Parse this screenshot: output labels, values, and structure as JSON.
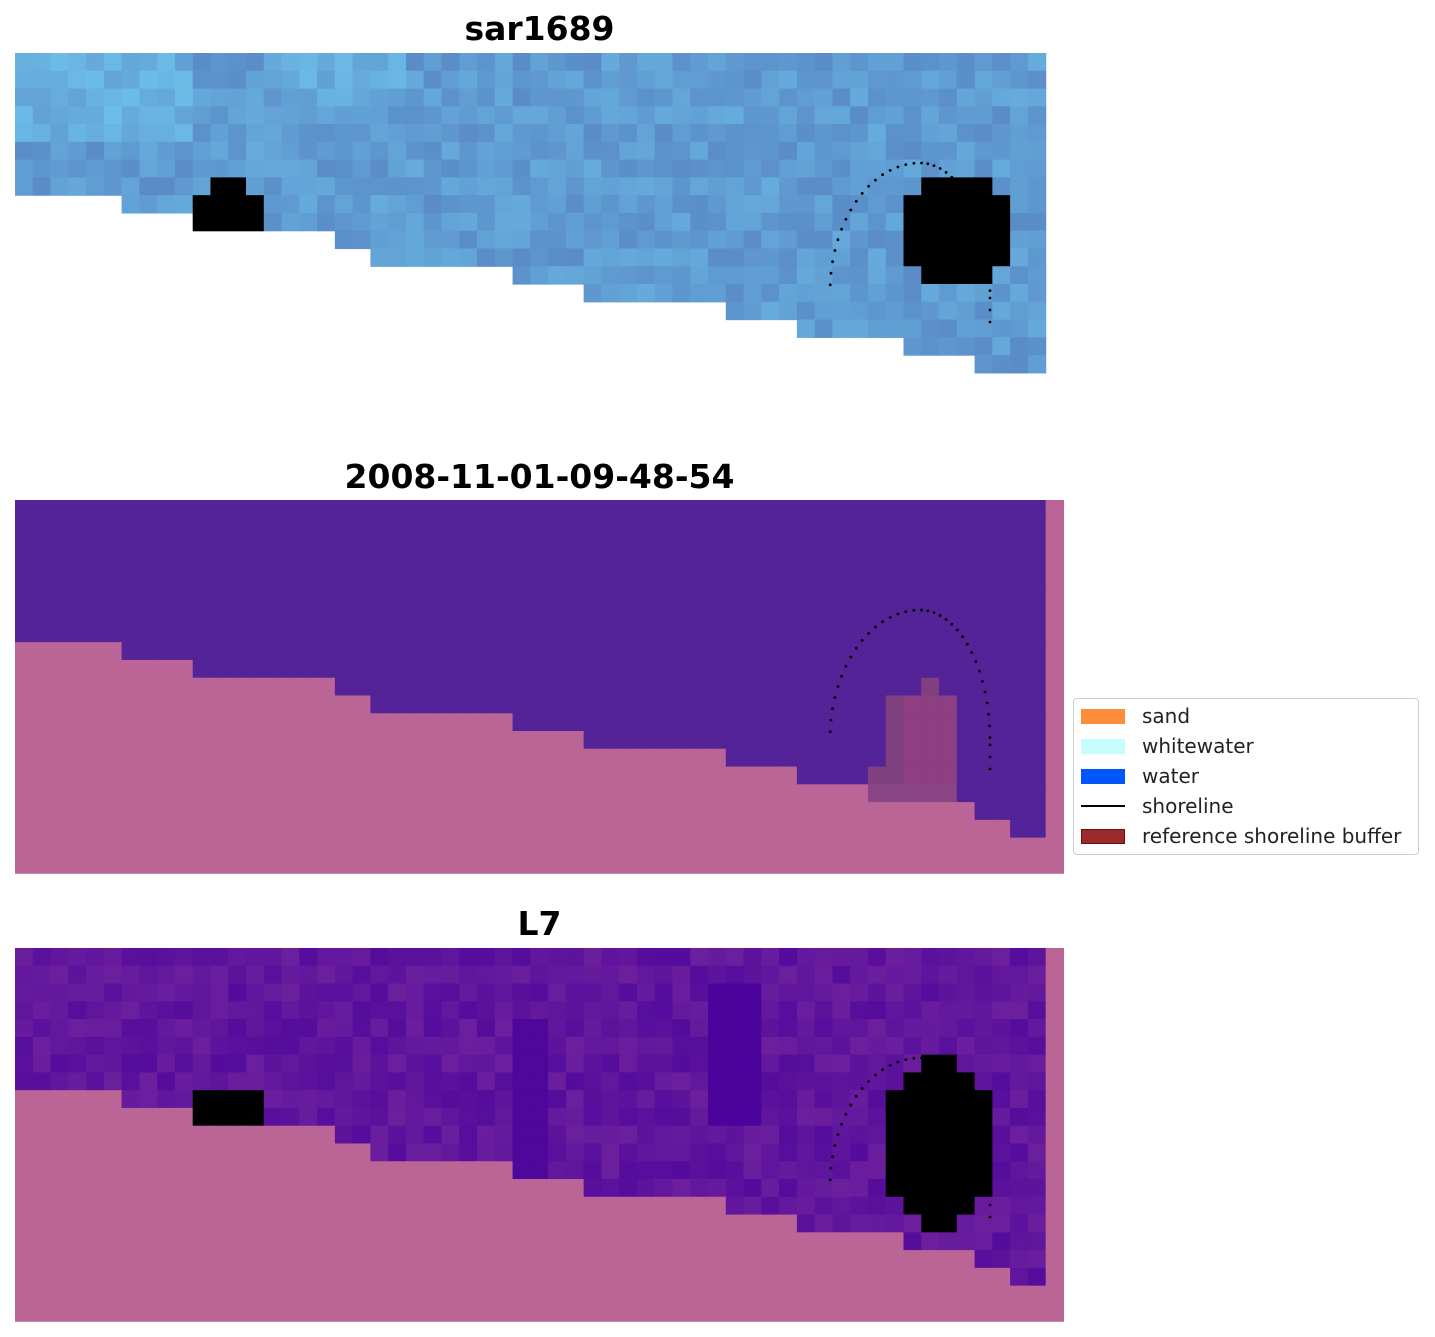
{
  "panels": [
    {
      "title": "sar1689",
      "kind": "rgb"
    },
    {
      "title": "2008-11-01-09-48-54",
      "kind": "classification"
    },
    {
      "title": "L7",
      "kind": "index"
    }
  ],
  "legend": {
    "items": [
      {
        "label": "sand",
        "color": "#ff8c3a",
        "type": "patch"
      },
      {
        "label": "whitewater",
        "color": "#c8fdfd",
        "type": "patch"
      },
      {
        "label": "water",
        "color": "#0055ff",
        "type": "patch"
      },
      {
        "label": "shoreline",
        "color": "#000000",
        "type": "line"
      },
      {
        "label": "reference shoreline buffer",
        "color": "#9c2a2a",
        "type": "patch"
      }
    ]
  },
  "colors": {
    "rgb_low": "#5a8cc7",
    "rgb_high": "#6fc5ec",
    "classification_water": "#532397",
    "classification_masked": "#bb6496",
    "classification_buffer": "#8d3f82",
    "index_low": "#4b039b",
    "index_high": "#d2002a",
    "index_masked": "#bb6496",
    "shoreline": "#000000"
  }
}
